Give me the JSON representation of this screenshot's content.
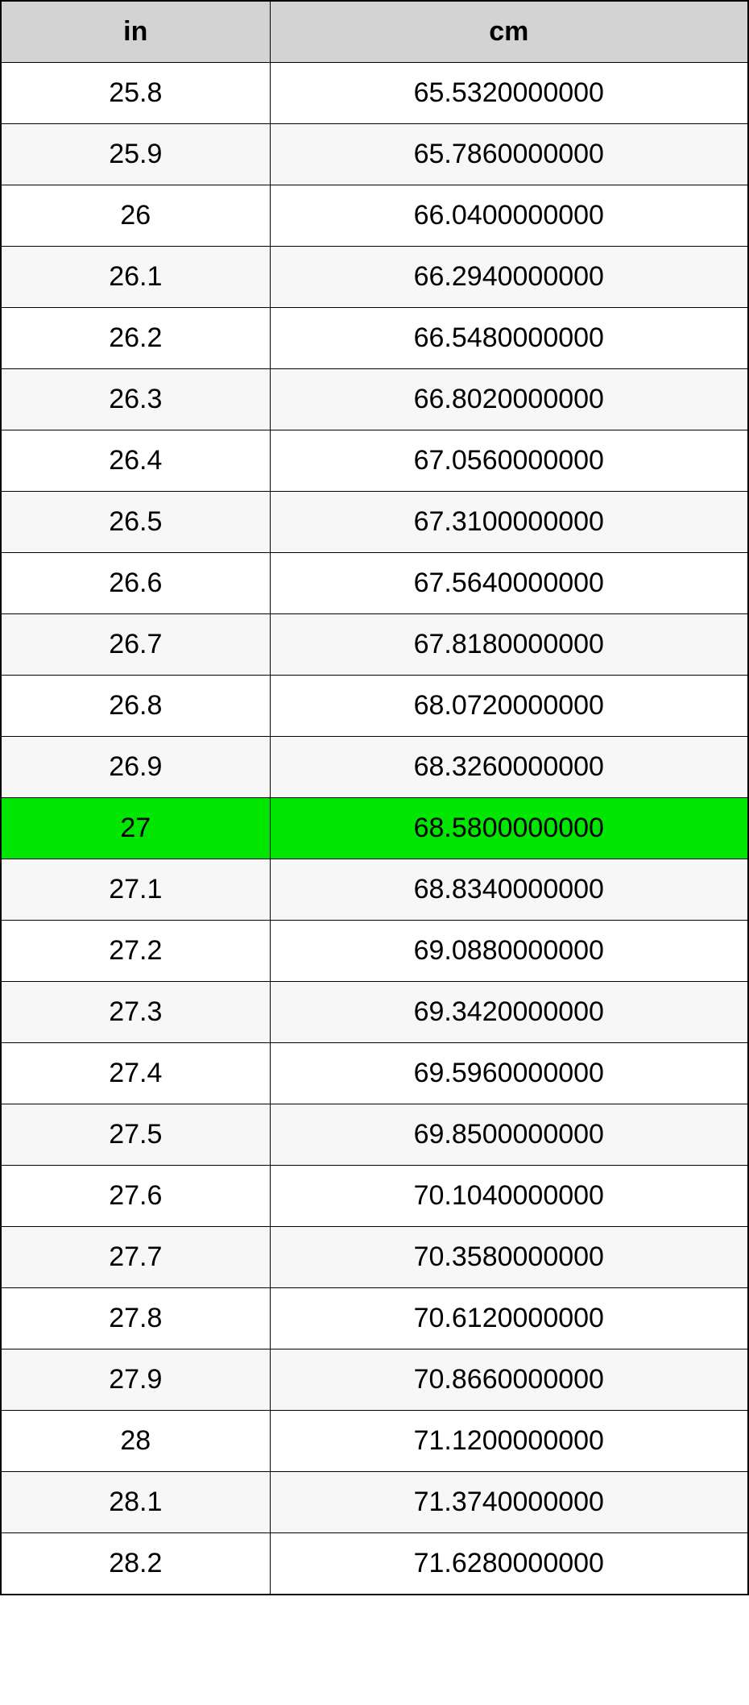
{
  "table": {
    "type": "table",
    "columns": [
      {
        "label": "in",
        "width_pct": 36
      },
      {
        "label": "cm",
        "width_pct": 64
      }
    ],
    "header_bg": "#d3d3d3",
    "highlight_bg": "#00e600",
    "row_alt_bg": "#f7f7f7",
    "row_bg": "#ffffff",
    "border_color": "#000000",
    "font_size": 34,
    "header_font_size": 34,
    "rows": [
      {
        "in": "25.8",
        "cm": "65.5320000000",
        "highlight": false
      },
      {
        "in": "25.9",
        "cm": "65.7860000000",
        "highlight": false
      },
      {
        "in": "26",
        "cm": "66.0400000000",
        "highlight": false
      },
      {
        "in": "26.1",
        "cm": "66.2940000000",
        "highlight": false
      },
      {
        "in": "26.2",
        "cm": "66.5480000000",
        "highlight": false
      },
      {
        "in": "26.3",
        "cm": "66.8020000000",
        "highlight": false
      },
      {
        "in": "26.4",
        "cm": "67.0560000000",
        "highlight": false
      },
      {
        "in": "26.5",
        "cm": "67.3100000000",
        "highlight": false
      },
      {
        "in": "26.6",
        "cm": "67.5640000000",
        "highlight": false
      },
      {
        "in": "26.7",
        "cm": "67.8180000000",
        "highlight": false
      },
      {
        "in": "26.8",
        "cm": "68.0720000000",
        "highlight": false
      },
      {
        "in": "26.9",
        "cm": "68.3260000000",
        "highlight": false
      },
      {
        "in": "27",
        "cm": "68.5800000000",
        "highlight": true
      },
      {
        "in": "27.1",
        "cm": "68.8340000000",
        "highlight": false
      },
      {
        "in": "27.2",
        "cm": "69.0880000000",
        "highlight": false
      },
      {
        "in": "27.3",
        "cm": "69.3420000000",
        "highlight": false
      },
      {
        "in": "27.4",
        "cm": "69.5960000000",
        "highlight": false
      },
      {
        "in": "27.5",
        "cm": "69.8500000000",
        "highlight": false
      },
      {
        "in": "27.6",
        "cm": "70.1040000000",
        "highlight": false
      },
      {
        "in": "27.7",
        "cm": "70.3580000000",
        "highlight": false
      },
      {
        "in": "27.8",
        "cm": "70.6120000000",
        "highlight": false
      },
      {
        "in": "27.9",
        "cm": "70.8660000000",
        "highlight": false
      },
      {
        "in": "28",
        "cm": "71.1200000000",
        "highlight": false
      },
      {
        "in": "28.1",
        "cm": "71.3740000000",
        "highlight": false
      },
      {
        "in": "28.2",
        "cm": "71.6280000000",
        "highlight": false
      }
    ]
  }
}
